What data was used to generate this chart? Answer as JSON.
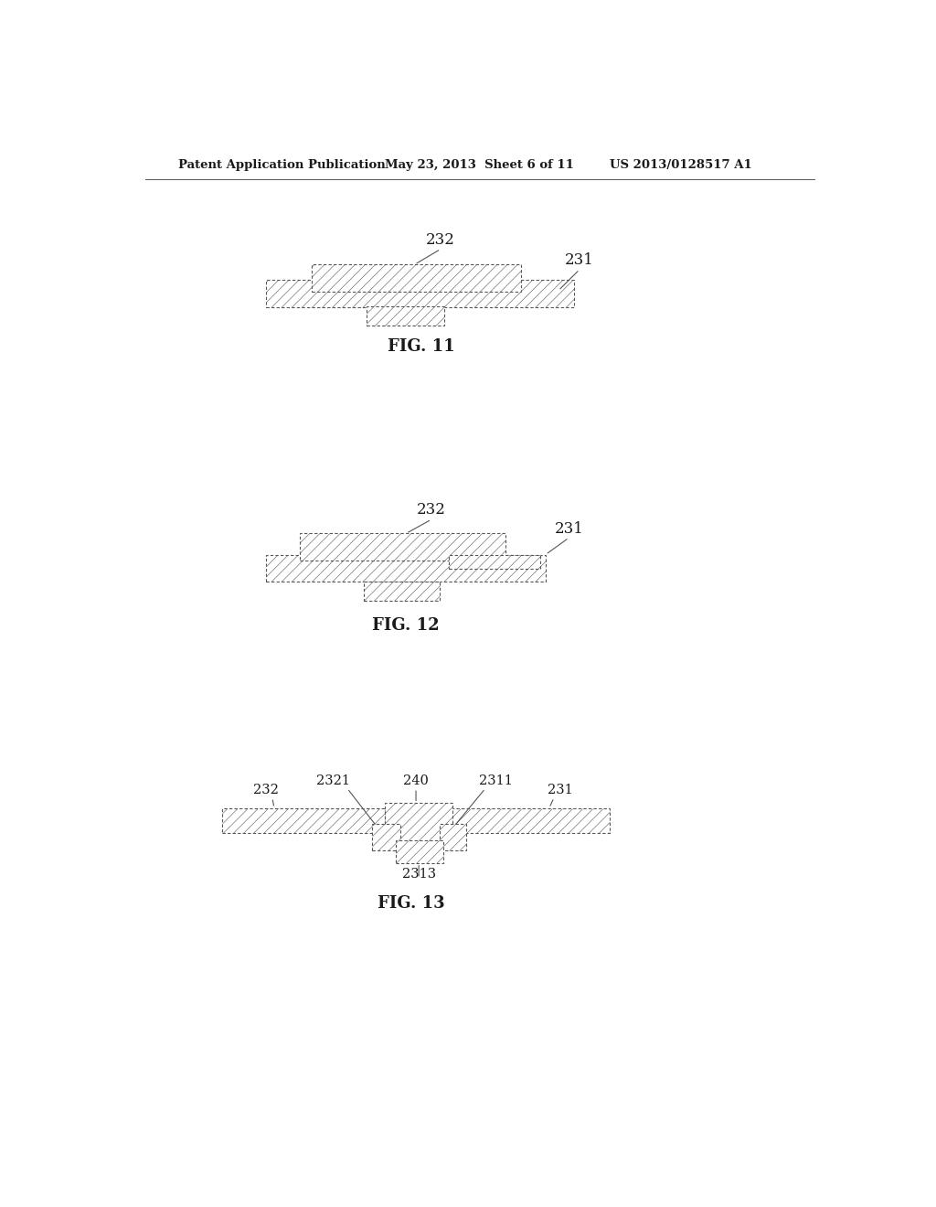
{
  "bg_color": "#ffffff",
  "text_color": "#1a1a1a",
  "header_left": "Patent Application Publication",
  "header_mid": "May 23, 2013  Sheet 6 of 11",
  "header_right": "US 2013/0128517 A1",
  "fig11_label": "FIG. 11",
  "fig12_label": "FIG. 12",
  "fig13_label": "FIG. 13",
  "lc": "#555555",
  "lw": 0.8,
  "hatch": "///",
  "hatch_lw": 0.4
}
